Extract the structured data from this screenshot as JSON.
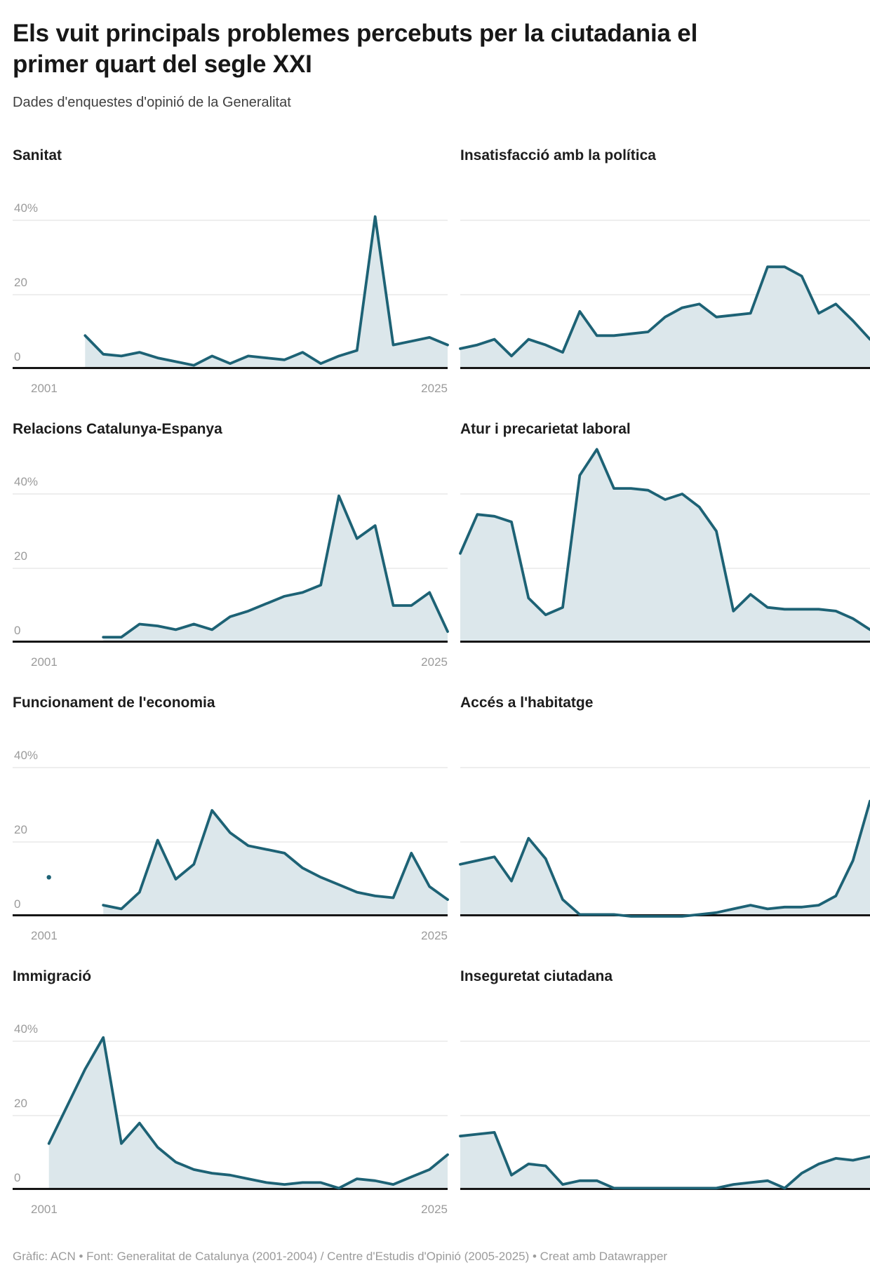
{
  "header": {
    "title": "Els vuit principals problemes percebuts per la ciutadania el primer quart del segle XXI",
    "subtitle": "Dades d'enquestes d'opinió de la Generalitat"
  },
  "axis": {
    "y_label_40": "40%",
    "y_label_20": "20",
    "y_label_0": "0",
    "x_label_start": "2001",
    "x_label_end": "2025"
  },
  "colors": {
    "line": "#1d6275",
    "area_fill": "#dce7eb",
    "gridline": "#dedede",
    "axis_line": "#161616",
    "tick_text": "#9b9b9b"
  },
  "chart_data": [
    {
      "type": "area",
      "title": "Sanitat",
      "unit": "%",
      "x_range": [
        2001,
        2025
      ],
      "yticks": [
        0,
        20,
        40
      ],
      "ylim": [
        0,
        55
      ],
      "start_year": 2005,
      "values": [
        9,
        4,
        3.5,
        4.5,
        3,
        2,
        1,
        3.5,
        1.5,
        3.5,
        3,
        2.5,
        4.5,
        1.5,
        3.5,
        5,
        41,
        6.5,
        7.5,
        8.5,
        6.5
      ]
    },
    {
      "type": "area",
      "title": "Insatisfacció amb la política",
      "unit": "%",
      "x_range": [
        2001,
        2025
      ],
      "yticks": [
        0,
        20,
        40
      ],
      "ylim": [
        0,
        55
      ],
      "start_year": 2001,
      "values": [
        5.5,
        6.5,
        8,
        3.5,
        8,
        6.5,
        4.5,
        15.5,
        9,
        9,
        9.5,
        10,
        14,
        16.5,
        17.5,
        14,
        14.5,
        15,
        27.5,
        27.5,
        25,
        15,
        17.5,
        13,
        8
      ]
    },
    {
      "type": "area",
      "title": "Relacions Catalunya-Espanya",
      "unit": "%",
      "x_range": [
        2001,
        2025
      ],
      "yticks": [
        0,
        20,
        40
      ],
      "ylim": [
        0,
        55
      ],
      "start_year": 2006,
      "values": [
        1.5,
        1.5,
        5,
        4.5,
        3.5,
        5,
        3.5,
        7,
        8.5,
        10.5,
        12.5,
        13.5,
        15.5,
        39.5,
        28,
        31.5,
        10,
        10,
        13.5,
        3
      ]
    },
    {
      "type": "area",
      "title": "Atur i precarietat laboral",
      "unit": "%",
      "x_range": [
        2001,
        2025
      ],
      "yticks": [
        0,
        20,
        40
      ],
      "ylim": [
        0,
        55
      ],
      "start_year": 2001,
      "values": [
        24,
        34.5,
        34,
        32.5,
        12,
        7.5,
        9.5,
        45,
        52,
        41.5,
        41.5,
        41,
        38.5,
        40,
        36.5,
        30,
        8.5,
        13,
        9.5,
        9,
        9,
        9,
        8.5,
        6.5,
        3.5
      ]
    },
    {
      "type": "area",
      "title": "Funcionament de l'economia",
      "unit": "%",
      "x_range": [
        2001,
        2025
      ],
      "yticks": [
        0,
        20,
        40
      ],
      "ylim": [
        0,
        55
      ],
      "start_year": 2006,
      "values": [
        3,
        2,
        6.5,
        20.5,
        10,
        14,
        28.5,
        22.5,
        19,
        18,
        17,
        13,
        10.5,
        8.5,
        6.5,
        5.5,
        5,
        17,
        8,
        4.5
      ],
      "isolated_point": {
        "year": 2003,
        "value": 10.5
      }
    },
    {
      "type": "area",
      "title": "Accés a l'habitatge",
      "unit": "%",
      "x_range": [
        2001,
        2025
      ],
      "yticks": [
        0,
        20,
        40
      ],
      "ylim": [
        0,
        55
      ],
      "start_year": 2001,
      "values": [
        14,
        15,
        16,
        9.5,
        21,
        15.5,
        4.5,
        0.5,
        0.5,
        0.5,
        0,
        0,
        0,
        0,
        0.5,
        1,
        2,
        3,
        2,
        2.5,
        2.5,
        3,
        5.5,
        15,
        31
      ]
    },
    {
      "type": "area",
      "title": "Immigració",
      "unit": "%",
      "x_range": [
        2001,
        2025
      ],
      "yticks": [
        0,
        20,
        40
      ],
      "ylim": [
        0,
        55
      ],
      "start_year": 2003,
      "values": [
        12.5,
        22.5,
        32.5,
        41,
        12.5,
        18,
        11.5,
        7.5,
        5.5,
        4.5,
        4,
        3,
        2,
        1.5,
        2,
        2,
        0.5,
        3,
        2.5,
        1.5,
        3.5,
        5.5,
        9.5
      ]
    },
    {
      "type": "area",
      "title": "Inseguretat ciutadana",
      "unit": "%",
      "x_range": [
        2001,
        2025
      ],
      "yticks": [
        0,
        20,
        40
      ],
      "ylim": [
        0,
        55
      ],
      "start_year": 2001,
      "values": [
        14.5,
        15,
        15.5,
        4,
        7,
        6.5,
        1.5,
        2.5,
        2.5,
        0.5,
        0.5,
        0.5,
        0.5,
        0.5,
        0.5,
        0.5,
        1.5,
        2,
        2.5,
        0.5,
        4.5,
        7,
        8.5,
        8,
        9
      ]
    }
  ],
  "footer": {
    "text": "Gràfic: ACN • Font: Generalitat de Catalunya (2001-2004) / Centre d'Estudis d'Opinió (2005-2025) • Creat amb Datawrapper"
  }
}
